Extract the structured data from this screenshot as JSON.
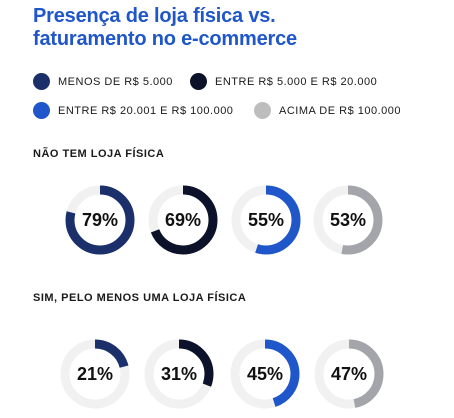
{
  "title": {
    "line1": "Presença de loja física vs.",
    "line2": "faturamento no e-commerce"
  },
  "legend": [
    {
      "label": "MENOS DE R$ 5.000",
      "color": "#1b2f6b"
    },
    {
      "label": "ENTRE R$ 5.000 E R$ 20.000",
      "color": "#0b1229"
    },
    {
      "label": "ENTRE R$ 20.001 E R$ 100.000",
      "color": "#1f56c9"
    },
    {
      "label": "ACIMA DE R$ 100.000",
      "color": "#bdbdbd"
    }
  ],
  "chart_data": [
    {
      "type": "donut",
      "title": "NÃO TEM LOJA FÍSICA",
      "categories": [
        "MENOS DE R$ 5.000",
        "ENTRE R$ 5.000 E R$ 20.000",
        "ENTRE R$ 20.001 E R$ 100.000",
        "ACIMA DE R$ 100.000"
      ],
      "values": [
        79,
        69,
        55,
        53
      ],
      "labels": [
        "79%",
        "69%",
        "55%",
        "53%"
      ],
      "colors": [
        "#1b2f6b",
        "#0b1229",
        "#1f56c9",
        "#a3a5ab"
      ],
      "track_color": "#f1f1f1"
    },
    {
      "type": "donut",
      "title": "SIM, PELO MENOS UMA LOJA FÍSICA",
      "categories": [
        "MENOS DE R$ 5.000",
        "ENTRE R$ 5.000 E R$ 20.000",
        "ENTRE R$ 20.001 E R$ 100.000",
        "ACIMA DE R$ 100.000"
      ],
      "values": [
        21,
        31,
        45,
        47
      ],
      "labels": [
        "21%",
        "31%",
        "45%",
        "47%"
      ],
      "colors": [
        "#1b2f6b",
        "#0b1229",
        "#1f56c9",
        "#a3a5ab"
      ],
      "track_color": "#f1f1f1"
    }
  ]
}
